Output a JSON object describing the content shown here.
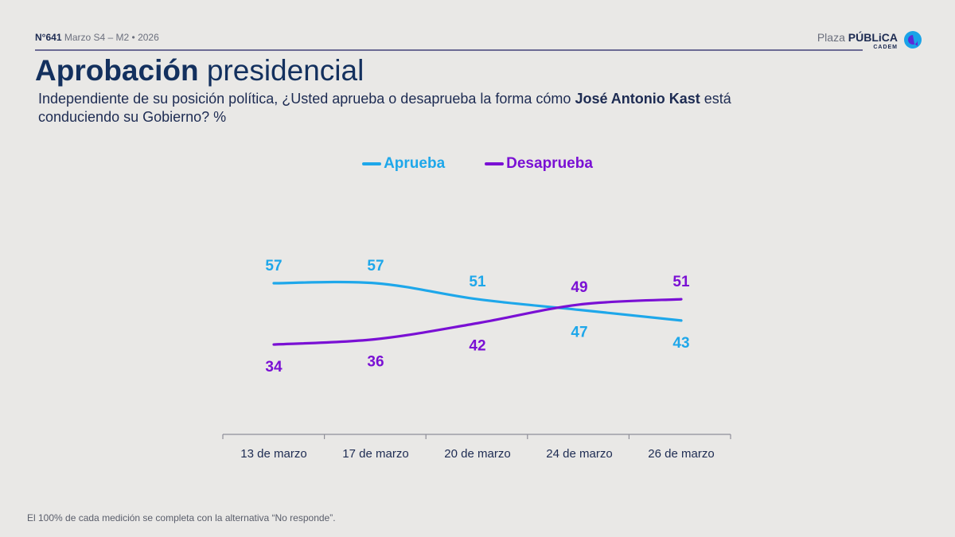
{
  "header": {
    "issue_number": "N°641",
    "issue_detail": "Marzo S4 – M2 • 2026"
  },
  "logo": {
    "brand_light": "Plaza",
    "brand_bold": "PÚBLiCA",
    "sub": "CADEM",
    "colors": [
      "#1aa3e8",
      "#5b2bd6"
    ]
  },
  "title": {
    "bold": "Aprobación",
    "regular": "presidencial"
  },
  "question": {
    "before": "Independiente de su posición política, ¿Usted aprueba o desaprueba la forma cómo ",
    "bold": "José Antonio Kast",
    "after": " está conduciendo su Gobierno? %"
  },
  "chart_data": {
    "type": "line",
    "categories": [
      "13 de marzo",
      "17 de marzo",
      "20 de marzo",
      "24 de marzo",
      "26 de marzo"
    ],
    "series": [
      {
        "name": "Aprueba",
        "color": "#1ea7ea",
        "values": [
          57,
          57,
          51,
          47,
          43
        ],
        "label_pos": [
          "above",
          "above",
          "above",
          "below",
          "below"
        ]
      },
      {
        "name": "Desaprueba",
        "color": "#7a10d4",
        "values": [
          34,
          36,
          42,
          49,
          51
        ],
        "label_pos": [
          "below",
          "below",
          "below",
          "above",
          "above"
        ]
      }
    ],
    "legend_position": "top-center",
    "grid": false,
    "y_axis_visible": false
  },
  "footnote": "El 100% de cada medición se completa con la alternativa “No responde”."
}
